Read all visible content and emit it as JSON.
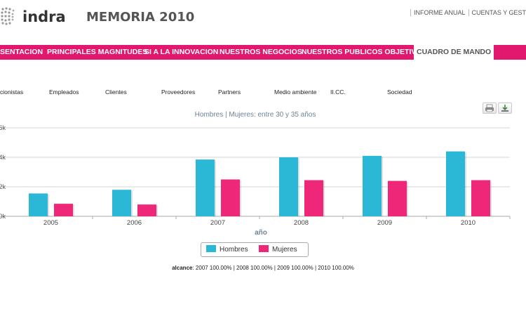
{
  "brand": {
    "logo_text": "indra",
    "report_title": "MEMORIA 2010"
  },
  "top_links": [
    "INFORME ANUAL",
    "CUENTAS Y GESTIO"
  ],
  "nav": {
    "items": [
      "SENTACION",
      "PRINCIPALES MAGNITUDES",
      "SI A LA INNOVACION",
      "NUESTROS NEGOCIOS",
      "NUESTROS PUBLICOS OBJETIVO",
      "CUADRO DE MANDO"
    ],
    "active": "CUADRO DE MANDO"
  },
  "subnav": [
    "cionistas",
    "Empleados",
    "Clientes",
    "Proveedores",
    "Partners",
    "Medio ambiente",
    "II.CC.",
    "Sociedad"
  ],
  "icons": {
    "print": "print-icon",
    "download": "download-icon"
  },
  "colors": {
    "accent": "#e2186f",
    "hombres": "#2ab8d6",
    "mujeres": "#ee2778"
  },
  "chart_data": {
    "type": "bar",
    "title": "Hombres | Mujeres: entre 30 y 35 años",
    "xlabel": "año",
    "ylabel": "",
    "categories": [
      "2005",
      "2006",
      "2007",
      "2008",
      "2009",
      "2010"
    ],
    "series": [
      {
        "name": "Hombres",
        "values": [
          1550,
          1800,
          3850,
          4000,
          4100,
          4400
        ]
      },
      {
        "name": "Mujeres",
        "values": [
          850,
          800,
          2500,
          2450,
          2400,
          2450
        ]
      }
    ],
    "yticks": [
      "0k",
      "2k",
      "4k",
      "6k"
    ],
    "ylim": [
      0,
      6000
    ],
    "grid": true,
    "legend": "bottom-center"
  },
  "footer": {
    "alcance_label": "alcance",
    "alcance_text": ": 2007 100.00% | 2008 100.00% | 2009 100.00% | 2010 100.00%"
  }
}
